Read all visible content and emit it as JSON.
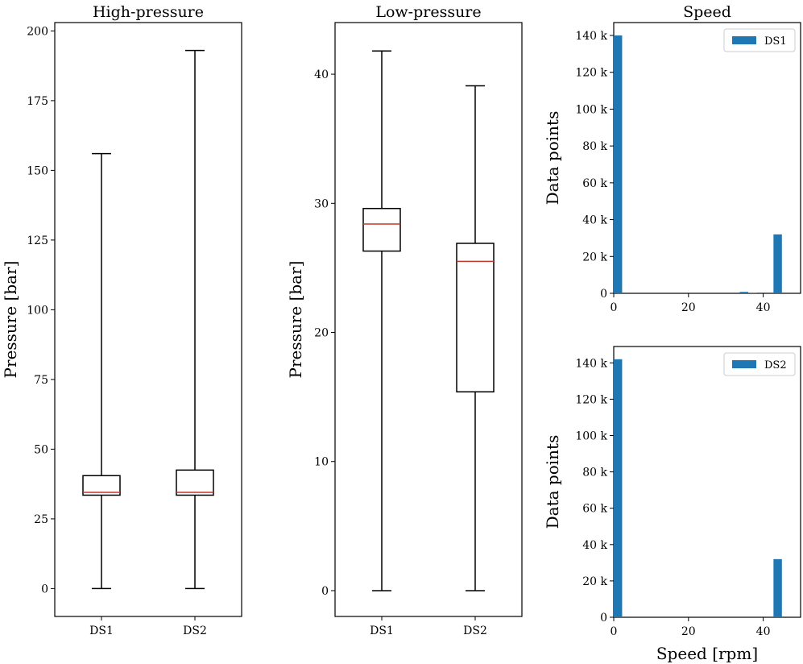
{
  "colors": {
    "bar": "#1f77b4",
    "median": "#c0392b",
    "axis": "#000000"
  },
  "chart_data": [
    {
      "type": "box",
      "title": "High-pressure",
      "xlabel": "",
      "ylabel": "Pressure [bar]",
      "categories": [
        "DS1",
        "DS2"
      ],
      "ylim": [
        -10,
        203
      ],
      "yticks": [
        0,
        25,
        50,
        75,
        100,
        125,
        150,
        175,
        200
      ],
      "boxes": [
        {
          "name": "DS1",
          "min": 0,
          "q1": 33.5,
          "median": 34.5,
          "q3": 40.5,
          "max": 156
        },
        {
          "name": "DS2",
          "min": 0,
          "q1": 33.5,
          "median": 34.5,
          "q3": 42.5,
          "max": 193
        }
      ]
    },
    {
      "type": "box",
      "title": "Low-pressure",
      "xlabel": "",
      "ylabel": "Pressure [bar]",
      "categories": [
        "DS1",
        "DS2"
      ],
      "ylim": [
        -2,
        44
      ],
      "yticks": [
        0,
        10,
        20,
        30,
        40
      ],
      "boxes": [
        {
          "name": "DS1",
          "min": 0,
          "q1": 26.3,
          "median": 28.4,
          "q3": 29.6,
          "max": 41.8
        },
        {
          "name": "DS2",
          "min": 0,
          "q1": 15.4,
          "median": 25.5,
          "q3": 26.9,
          "max": 39.1
        }
      ]
    },
    {
      "type": "bar",
      "title": "Speed",
      "xlabel": "",
      "ylabel": "Data points",
      "legend": "DS1",
      "legend_position": "top-right",
      "xlim": [
        0,
        50
      ],
      "ylim": [
        0,
        147000
      ],
      "xticks": [
        0,
        20,
        40
      ],
      "yticks": [
        0,
        20000,
        40000,
        60000,
        80000,
        100000,
        120000,
        140000
      ],
      "ytick_labels": [
        "0",
        "20 k",
        "40 k",
        "60 k",
        "80 k",
        "100 k",
        "120 k",
        "140 k"
      ],
      "bin_width": 2.25,
      "bins": [
        {
          "x": 0,
          "value": 140000
        },
        {
          "x": 33.75,
          "value": 800
        },
        {
          "x": 36,
          "value": 300
        },
        {
          "x": 42.75,
          "value": 32000
        }
      ]
    },
    {
      "type": "bar",
      "title": "",
      "xlabel": "Speed [rpm]",
      "ylabel": "Data points",
      "legend": "DS2",
      "legend_position": "top-right",
      "xlim": [
        0,
        50
      ],
      "ylim": [
        0,
        149000
      ],
      "xticks": [
        0,
        20,
        40
      ],
      "yticks": [
        0,
        20000,
        40000,
        60000,
        80000,
        100000,
        120000,
        140000
      ],
      "ytick_labels": [
        "0",
        "20 k",
        "40 k",
        "60 k",
        "80 k",
        "100 k",
        "120 k",
        "140 k"
      ],
      "bin_width": 2.25,
      "bins": [
        {
          "x": 0,
          "value": 142000
        },
        {
          "x": 42.75,
          "value": 32000
        }
      ]
    }
  ]
}
